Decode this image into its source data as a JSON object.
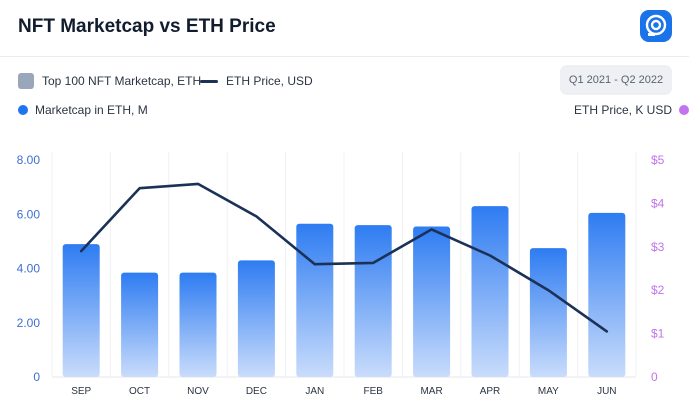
{
  "header": {
    "title": "NFT Marketcap vs ETH Price"
  },
  "legend": {
    "bar_label": "Top 100 NFT Marketcap, ETH",
    "line_label": "ETH Price, USD"
  },
  "filter": {
    "date_range": "Q1 2021 - Q2 2022"
  },
  "axes": {
    "left_label": "Marketcap in ETH, M",
    "right_label": "ETH Price, K USD"
  },
  "colors": {
    "bar_top": "#2e7cf2",
    "bar_bottom": "#c9dcfb",
    "line": "#1b3158",
    "left_axis": "#3e6fd1",
    "right_axis": "#c173ee"
  },
  "chart_data": {
    "type": "bar",
    "title": "NFT Marketcap vs ETH Price",
    "categories": [
      "SEP",
      "OCT",
      "NOV",
      "DEC",
      "JAN",
      "FEB",
      "MAR",
      "APR",
      "MAY",
      "JUN"
    ],
    "series": [
      {
        "name": "Top 100 NFT Marketcap, ETH",
        "type": "bar",
        "axis": "left",
        "values": [
          4.9,
          3.85,
          3.85,
          4.3,
          5.65,
          5.6,
          5.55,
          6.3,
          4.75,
          6.05
        ]
      },
      {
        "name": "ETH Price, USD",
        "type": "line",
        "axis": "right",
        "values": [
          2.9,
          4.35,
          4.45,
          3.7,
          2.6,
          2.63,
          3.4,
          2.8,
          2.0,
          1.05
        ]
      }
    ],
    "y_left": {
      "label": "Marketcap in ETH, M",
      "ylim": [
        0,
        8
      ],
      "ticks": [
        "0",
        "2.00",
        "4.00",
        "6.00",
        "8.00"
      ]
    },
    "y_right": {
      "label": "ETH Price, K USD",
      "ylim": [
        0,
        5
      ],
      "ticks": [
        "0",
        "$1",
        "$2",
        "$3",
        "$4",
        "$5"
      ]
    },
    "grid": "vertical",
    "legend_position": "top-left"
  }
}
